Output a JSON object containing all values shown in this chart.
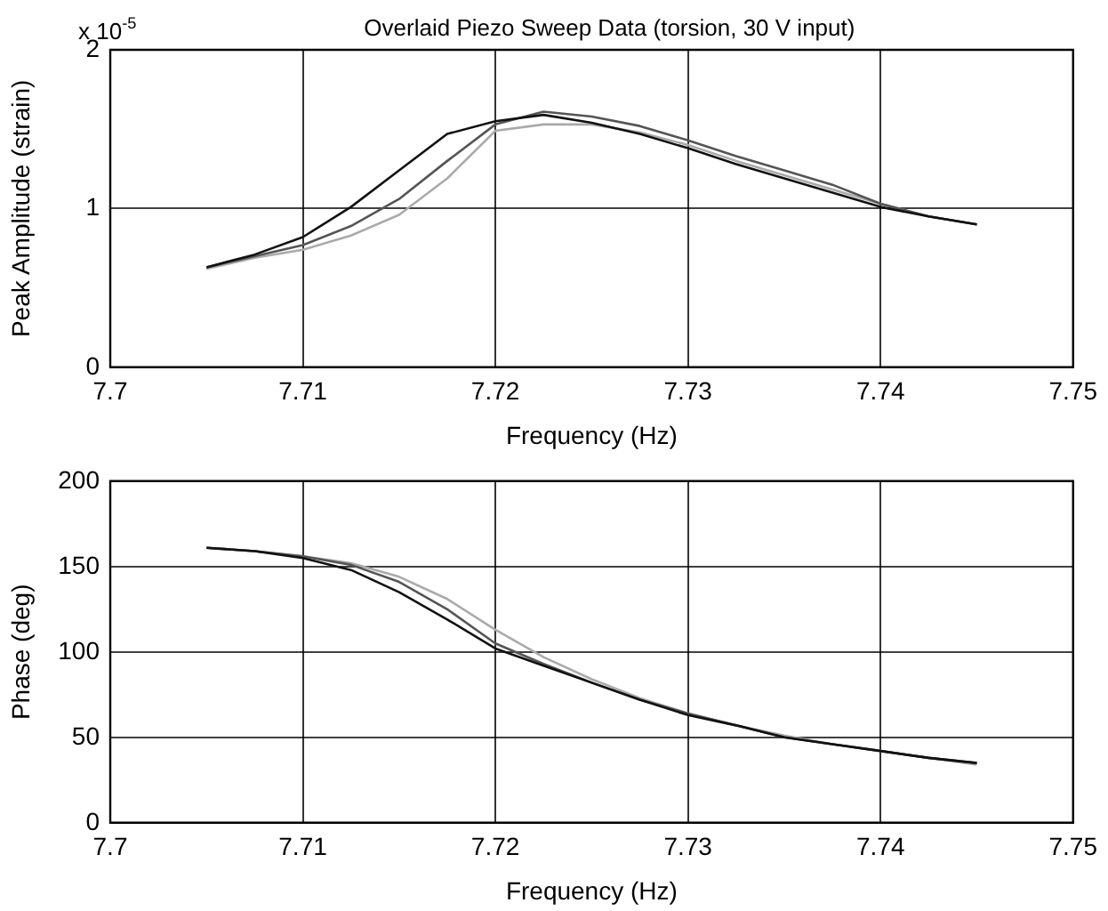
{
  "chart_data": [
    {
      "type": "line",
      "title": "Overlaid Piezo Sweep Data (torsion, 30 V input)",
      "xlabel": "Frequency (Hz)",
      "ylabel": "Peak Amplitude (strain)",
      "annotations": [
        "x 10$^{-5}$"
      ],
      "x": [
        7.705,
        7.7075,
        7.71,
        7.7125,
        7.715,
        7.7175,
        7.72,
        7.7225,
        7.725,
        7.7275,
        7.73,
        7.7325,
        7.735,
        7.7375,
        7.74,
        7.7425,
        7.745
      ],
      "series": [
        {
          "color": "#111111",
          "values": [
            0.63,
            0.71,
            0.82,
            1.01,
            1.24,
            1.47,
            1.55,
            1.59,
            1.54,
            1.47,
            1.38,
            1.28,
            1.19,
            1.1,
            1.01,
            0.95,
            0.9
          ]
        },
        {
          "color": "#555555",
          "values": [
            0.63,
            0.7,
            0.77,
            0.89,
            1.06,
            1.3,
            1.53,
            1.61,
            1.58,
            1.52,
            1.43,
            1.33,
            1.24,
            1.15,
            1.03,
            0.95,
            0.9
          ]
        },
        {
          "color": "#aaaaaa",
          "values": [
            0.62,
            0.69,
            0.74,
            0.83,
            0.96,
            1.19,
            1.49,
            1.53,
            1.53,
            1.48,
            1.4,
            1.3,
            1.21,
            1.12,
            1.03,
            0.95,
            0.9
          ]
        }
      ],
      "xlim": [
        7.7,
        7.75
      ],
      "xticks": [
        7.7,
        7.71,
        7.72,
        7.73,
        7.74,
        7.75
      ],
      "ylim": [
        0,
        2
      ],
      "yticks": [
        0,
        1,
        2
      ],
      "grid": true,
      "line_style": "solid"
    },
    {
      "type": "line",
      "xlabel": "Frequency (Hz)",
      "ylabel": "Phase (deg)",
      "x": [
        7.705,
        7.7075,
        7.71,
        7.7125,
        7.715,
        7.7175,
        7.72,
        7.7225,
        7.725,
        7.7275,
        7.73,
        7.7325,
        7.735,
        7.7375,
        7.74,
        7.7425,
        7.745
      ],
      "series": [
        {
          "color": "#111111",
          "values": [
            161,
            159,
            155,
            148,
            135,
            119,
            102,
            92,
            82,
            72,
            63,
            57,
            50,
            46,
            42,
            38,
            35
          ]
        },
        {
          "color": "#555555",
          "values": [
            161,
            159,
            156,
            151,
            141,
            125,
            105,
            93,
            82,
            72,
            64,
            57,
            50,
            46,
            42,
            38,
            35
          ]
        },
        {
          "color": "#aaaaaa",
          "values": [
            161,
            159,
            156,
            152,
            144,
            131,
            113,
            97,
            84,
            73,
            64,
            57,
            51,
            46,
            42,
            38,
            34
          ]
        }
      ],
      "xlim": [
        7.7,
        7.75
      ],
      "xticks": [
        7.7,
        7.71,
        7.72,
        7.73,
        7.74,
        7.75
      ],
      "ylim": [
        0,
        200
      ],
      "yticks": [
        0,
        50,
        100,
        150,
        200
      ],
      "grid": true,
      "line_style": "solid"
    }
  ]
}
